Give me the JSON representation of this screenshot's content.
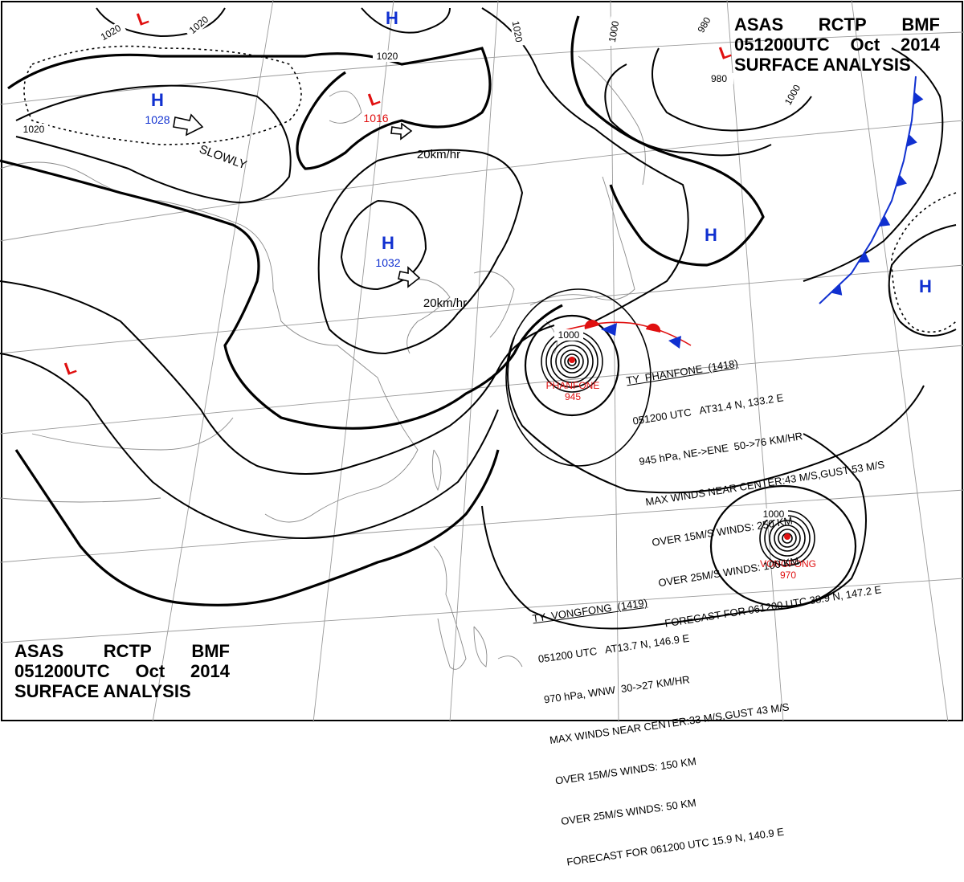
{
  "header": {
    "agency": [
      "ASAS",
      "RCTP",
      "BMF"
    ],
    "time": [
      "051200UTC",
      "Oct",
      "2014"
    ],
    "product": "SURFACE ANALYSIS"
  },
  "systems": [
    {
      "kind": "H",
      "pressure": "1028",
      "color": "#1030d0"
    },
    {
      "kind": "H",
      "pressure": "",
      "color": "#1030d0"
    },
    {
      "kind": "L",
      "pressure": "1016",
      "color": "#e01010"
    },
    {
      "kind": "H",
      "pressure": "1032",
      "color": "#1030d0"
    },
    {
      "kind": "L",
      "pressure": "",
      "color": "#e01010"
    },
    {
      "kind": "L",
      "pressure": "",
      "color": "#e01010"
    },
    {
      "kind": "H",
      "pressure": "",
      "color": "#1030d0"
    },
    {
      "kind": "H",
      "pressure": "",
      "color": "#1030d0"
    },
    {
      "kind": "L",
      "pressure": "",
      "color": "#e01010"
    }
  ],
  "motion_labels": [
    "SLOWLY",
    "20km/hr",
    "20km/hr"
  ],
  "isobar_labels": [
    "1020",
    "1020",
    "1020",
    "1020",
    "1020",
    "980",
    "980",
    "1000",
    "1000",
    "1000",
    "1000"
  ],
  "typhoons": [
    {
      "name": "PHANFONE",
      "pressure": "945",
      "lines": [
        "TY  PHANFONE  (1418)",
        "051200 UTC   AT31.4 N, 133.2 E",
        "945 hPa, NE->ENE  50->76 KM/HR",
        "MAX WINDS NEAR CENTER:43 M/S,GUST 53 M/S",
        "OVER 15M/S WINDS: 250 KM",
        "OVER 25M/S WINDS: 100 KM",
        "FORECAST FOR 061200 UTC 38.9 N, 147.2 E"
      ]
    },
    {
      "name": "VONGFONG",
      "pressure": "970",
      "lines": [
        "TY  VONGFONG  (1419)",
        "051200 UTC   AT13.7 N, 146.9 E",
        "970 hPa, WNW  30->27 KM/HR",
        "MAX WINDS NEAR CENTER:33 M/S,GUST 43 M/S",
        "OVER 15M/S WINDS: 150 KM",
        "OVER 25M/S WINDS: 50 KM",
        "FORECAST FOR 061200 UTC 15.9 N, 140.9 E"
      ]
    }
  ],
  "colors": {
    "isobar": "#000000",
    "coastline": "#8a8a8a",
    "grid": "#9a9a9a",
    "high": "#1030d0",
    "low": "#e01010",
    "cold_front": "#1030d0",
    "warm_front": "#e01010"
  }
}
